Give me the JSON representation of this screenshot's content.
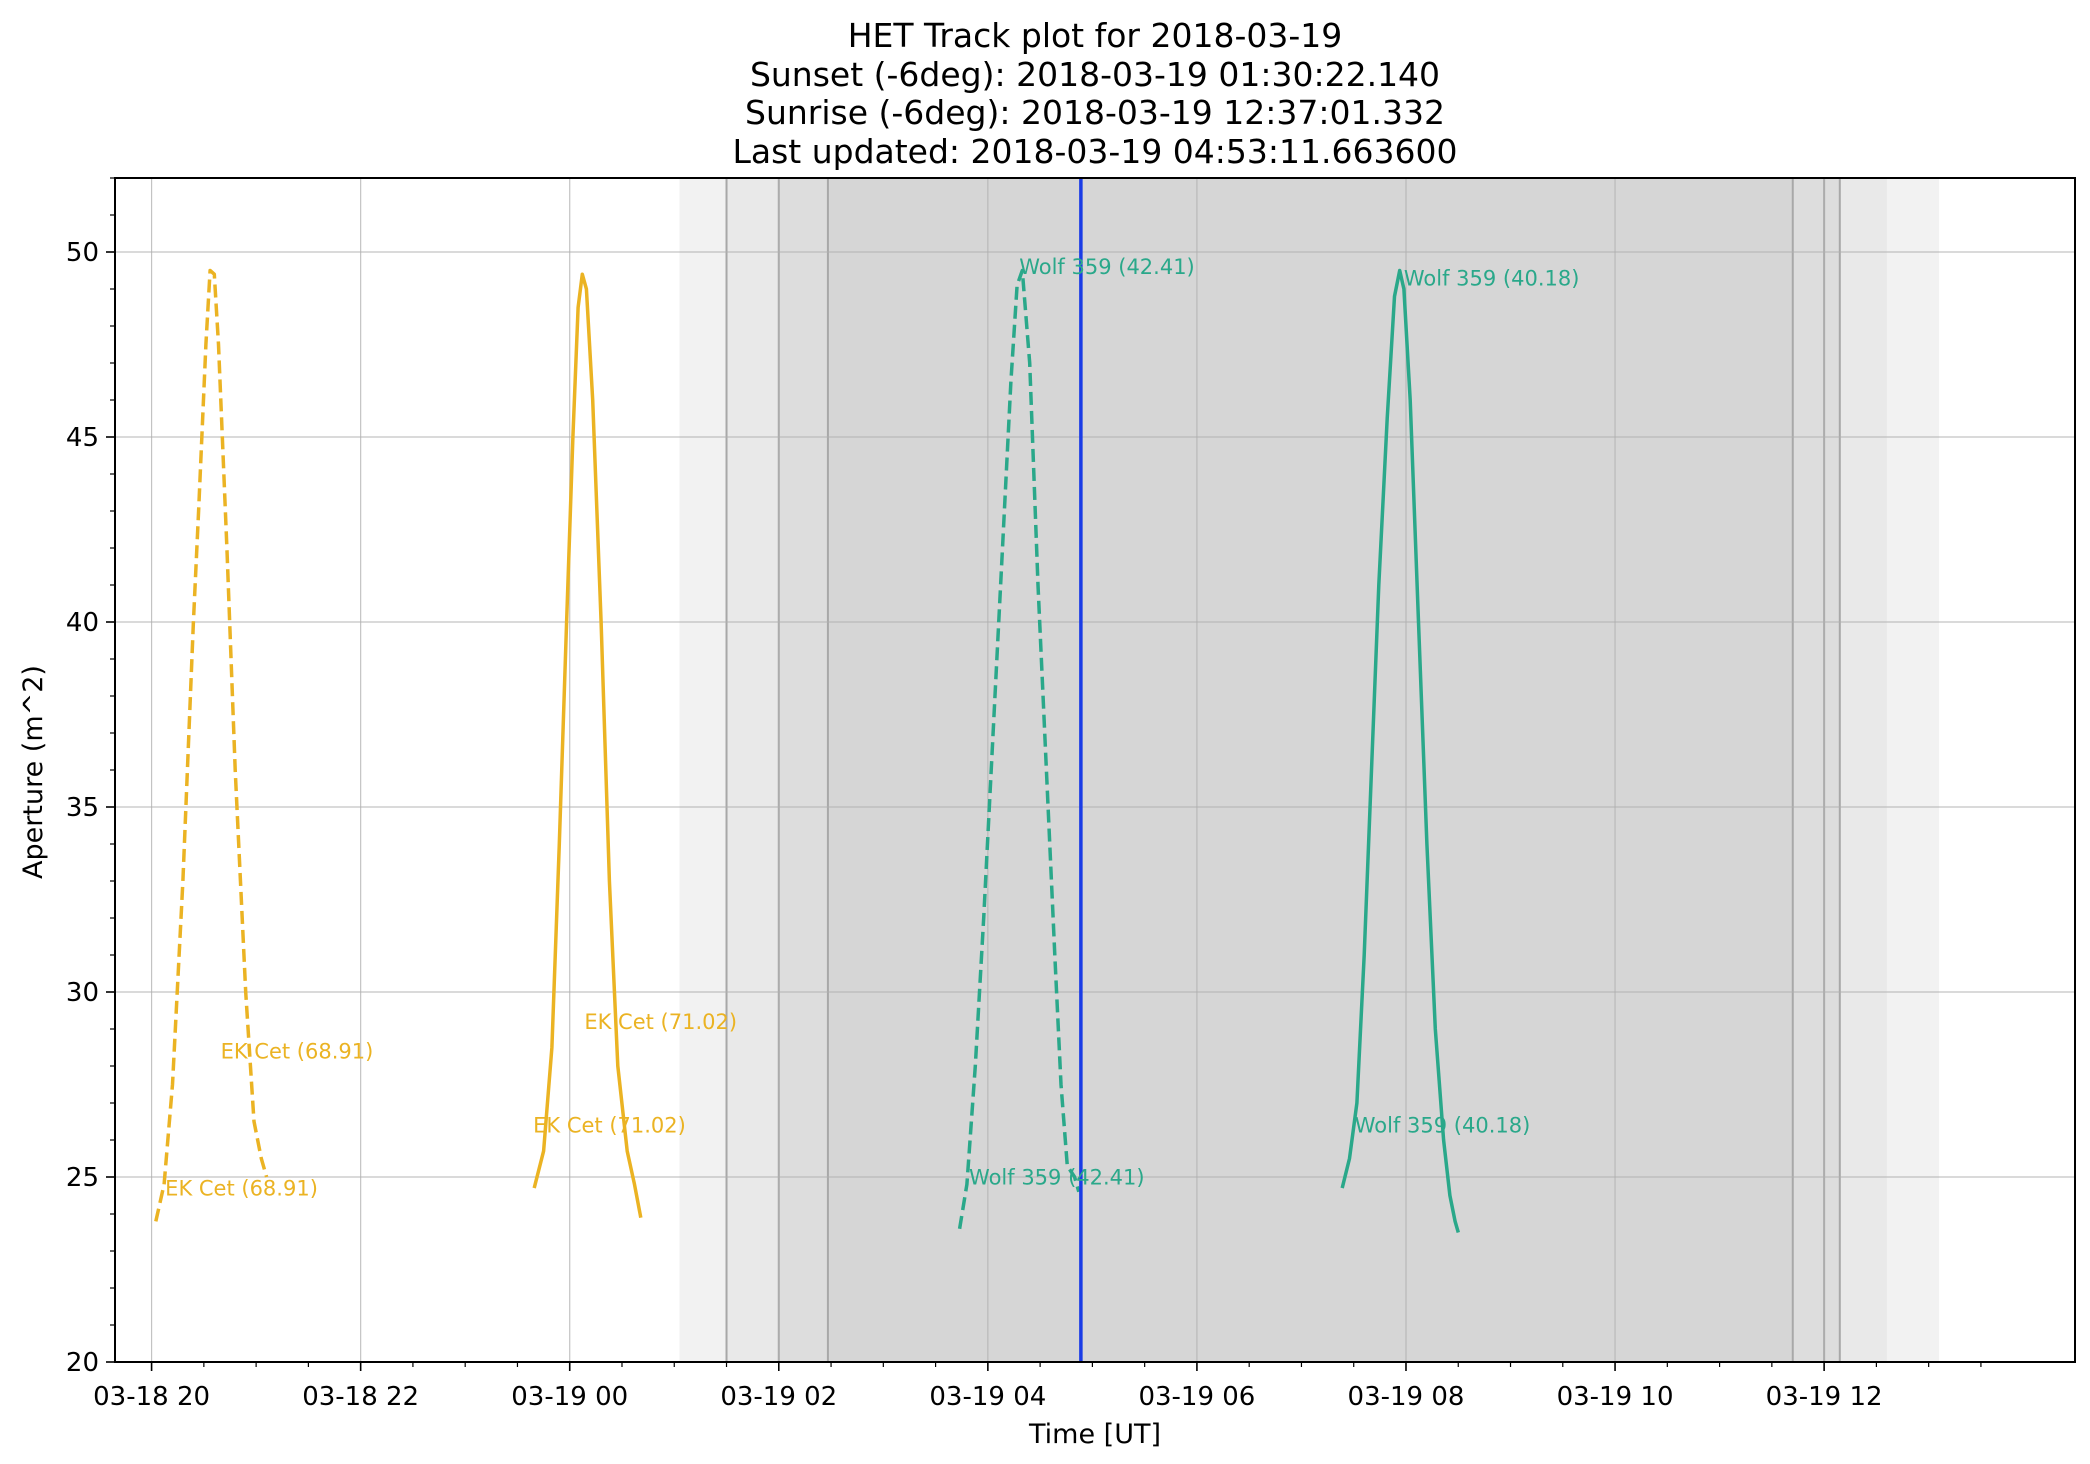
{
  "chart_data": {
    "type": "line",
    "title_lines": [
      "HET Track plot for 2018-03-19",
      "Sunset (-6deg): 2018-03-19 01:30:22.140",
      "Sunrise (-6deg): 2018-03-19 12:37:01.332",
      "Last updated: 2018-03-19 04:53:11.663600"
    ],
    "xlabel": "Time [UT]",
    "ylabel": "Aperture (m^2)",
    "x_unit": "hours since 2018-03-18 00:00 UT",
    "xlim": [
      19.65,
      38.4
    ],
    "ylim": [
      20,
      52
    ],
    "grid": true,
    "x_ticks": [
      {
        "value": 20,
        "label": "03-18 20"
      },
      {
        "value": 22,
        "label": "03-18 22"
      },
      {
        "value": 24,
        "label": "03-19 00"
      },
      {
        "value": 26,
        "label": "03-19 02"
      },
      {
        "value": 28,
        "label": "03-19 04"
      },
      {
        "value": 30,
        "label": "03-19 06"
      },
      {
        "value": 32,
        "label": "03-19 08"
      },
      {
        "value": 34,
        "label": "03-19 10"
      },
      {
        "value": 36,
        "label": "03-19 12"
      }
    ],
    "y_ticks": [
      {
        "value": 20,
        "label": "20"
      },
      {
        "value": 25,
        "label": "25"
      },
      {
        "value": 30,
        "label": "30"
      },
      {
        "value": 35,
        "label": "35"
      },
      {
        "value": 40,
        "label": "40"
      },
      {
        "value": 45,
        "label": "45"
      },
      {
        "value": 50,
        "label": "50"
      }
    ],
    "night_bands": [
      {
        "name": "civil-twilight",
        "start": 25.05,
        "end": 37.1,
        "color": "#f2f2f2"
      },
      {
        "name": "nautical-twilight",
        "start": 25.5,
        "end": 36.6,
        "color": "#e9e9e9"
      },
      {
        "name": "astronomical-twilight",
        "start": 26.0,
        "end": 36.15,
        "color": "#dddddd"
      },
      {
        "name": "dark-time",
        "start": 26.47,
        "end": 35.7,
        "color": "#d6d6d6"
      }
    ],
    "band_edges": [
      25.5,
      26.0,
      26.47,
      35.7,
      36.0,
      36.15
    ],
    "current_time": {
      "value": 28.89,
      "color": "#1a3ce6"
    },
    "series": [
      {
        "name": "EK Cet (68.91)",
        "color": "#ebb323",
        "style": "dashed",
        "x": [
          20.04,
          20.12,
          20.2,
          20.3,
          20.4,
          20.45,
          20.52,
          20.56,
          20.6,
          20.64,
          20.72,
          20.8,
          20.9,
          20.98,
          21.05,
          21.1
        ],
        "y": [
          23.8,
          24.8,
          27.5,
          33.0,
          40.0,
          43.0,
          47.5,
          49.5,
          49.4,
          47.5,
          42.0,
          36.0,
          30.0,
          26.5,
          25.5,
          25.0
        ]
      },
      {
        "name": "EK Cet (71.02)",
        "color": "#ebb323",
        "style": "solid",
        "x": [
          23.66,
          23.75,
          23.83,
          23.9,
          23.97,
          24.03,
          24.08,
          24.12,
          24.16,
          24.22,
          24.3,
          24.38,
          24.46,
          24.55,
          24.62,
          24.68
        ],
        "y": [
          24.7,
          25.7,
          28.5,
          34.0,
          40.0,
          45.0,
          48.5,
          49.4,
          49.0,
          46.0,
          40.0,
          33.0,
          28.0,
          25.7,
          24.8,
          23.9
        ]
      },
      {
        "name": "Wolf 359 (42.41)",
        "color": "#2aa88a",
        "style": "dashed",
        "x": [
          27.73,
          27.8,
          27.88,
          27.96,
          28.05,
          28.14,
          28.22,
          28.28,
          28.33,
          28.4,
          28.48,
          28.56,
          28.64,
          28.7,
          28.76,
          28.83,
          28.87
        ],
        "y": [
          23.6,
          24.8,
          28.0,
          32.0,
          37.0,
          42.0,
          46.5,
          49.1,
          49.5,
          47.0,
          41.0,
          36.0,
          31.0,
          27.5,
          25.3,
          25.0,
          24.6
        ]
      },
      {
        "name": "Wolf 359 (40.18)",
        "color": "#2aa88a",
        "style": "solid",
        "x": [
          31.39,
          31.46,
          31.53,
          31.6,
          31.67,
          31.74,
          31.82,
          31.89,
          31.94,
          31.98,
          32.04,
          32.12,
          32.2,
          32.28,
          32.36,
          32.42,
          32.47,
          32.5
        ],
        "y": [
          24.7,
          25.5,
          27.0,
          31.0,
          36.0,
          41.0,
          45.5,
          48.8,
          49.5,
          49.0,
          46.0,
          40.0,
          34.0,
          29.0,
          26.0,
          24.5,
          23.8,
          23.5
        ]
      }
    ],
    "annotations": [
      {
        "text": "EK Cet (68.91)",
        "x": 20.13,
        "y": 24.5,
        "color": "#ebb323"
      },
      {
        "text": "EK Cet (68.91)",
        "x": 20.66,
        "y": 28.2,
        "color": "#ebb323"
      },
      {
        "text": "EK Cet (71.02)",
        "x": 23.65,
        "y": 26.2,
        "color": "#ebb323"
      },
      {
        "text": "EK Cet (71.02)",
        "x": 24.14,
        "y": 29.0,
        "color": "#ebb323"
      },
      {
        "text": "Wolf 359 (42.41)",
        "x": 27.82,
        "y": 24.8,
        "color": "#2aa88a"
      },
      {
        "text": "Wolf 359 (42.41)",
        "x": 28.3,
        "y": 49.4,
        "color": "#2aa88a"
      },
      {
        "text": "Wolf 359 (40.18)",
        "x": 31.51,
        "y": 26.2,
        "color": "#2aa88a"
      },
      {
        "text": "Wolf 359 (40.18)",
        "x": 31.98,
        "y": 49.1,
        "color": "#2aa88a"
      }
    ]
  }
}
